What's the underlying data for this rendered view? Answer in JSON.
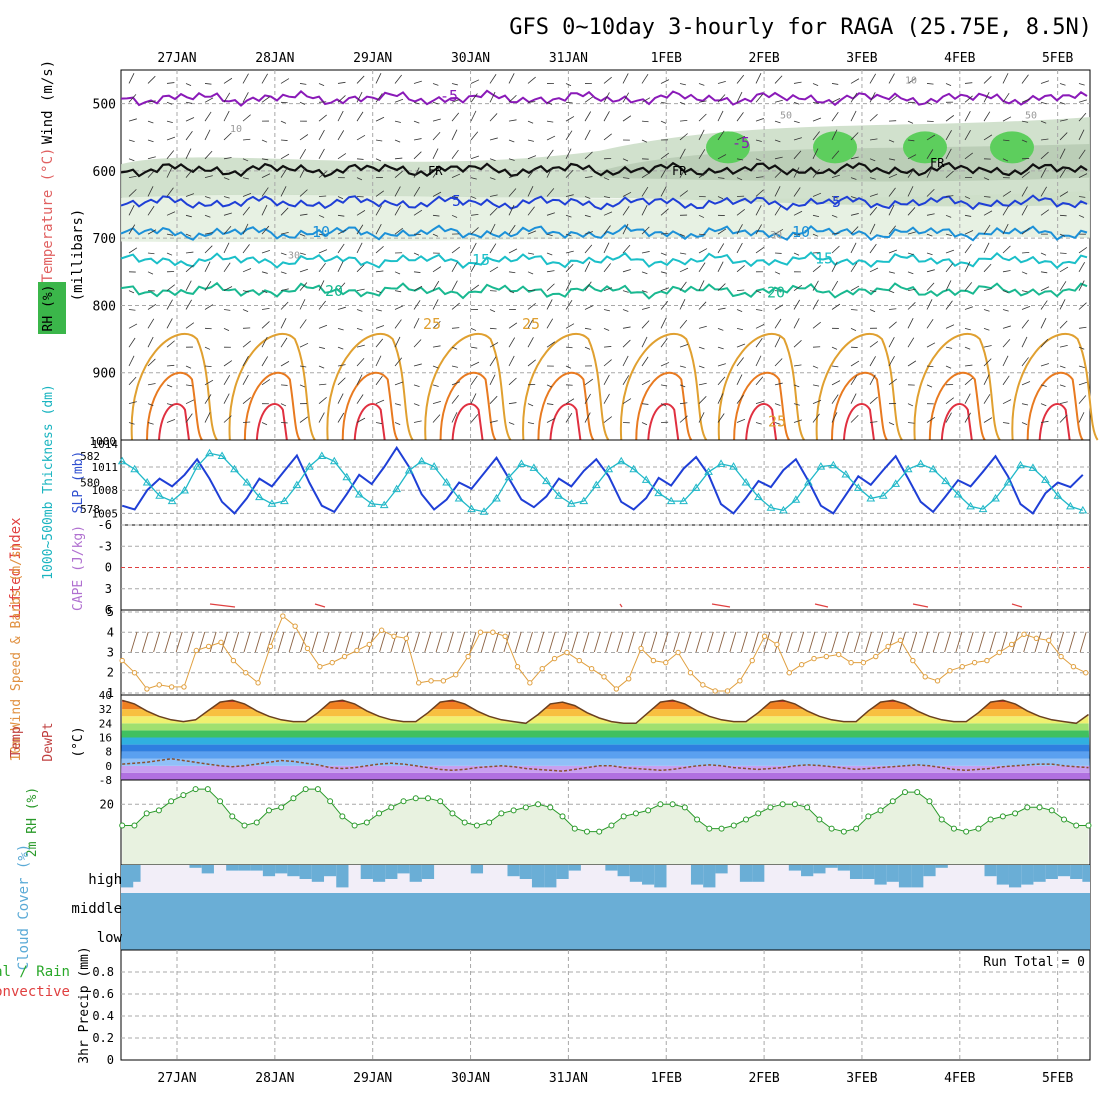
{
  "title": "GFS 0~10day 3-hourly for RAGA (25.75E, 8.5N)",
  "date_labels": [
    "27JAN",
    "28JAN",
    "29JAN",
    "30JAN",
    "31JAN",
    "1FEB",
    "2FEB",
    "3FEB",
    "4FEB",
    "5FEB"
  ],
  "colors": {
    "grid": "#a8a8a8",
    "rh_fill": "#e4f0e0",
    "rh_fill2": "#c9dcc4",
    "rh_fill3": "#b5c9b1",
    "rh_green": "#5dce5d",
    "purple": "#8a1ab8",
    "blue_dark": "#1f3fd6",
    "blue_mid": "#1c90d8",
    "cyan": "#1bbfc8",
    "teal": "#19b890",
    "yellow": "#e0a030",
    "orange": "#e87a20",
    "red": "#e03040",
    "magenta": "#d0107a",
    "slp_line": "#1f3fd6",
    "thick_line": "#20b8c8",
    "wind_line": "#e0a040",
    "rh2m_line": "#2a9a2a",
    "rh2m_fill": "#e8f2e0",
    "cloud_fill": "#6aaed6",
    "cloud_bg": "#f2eef8",
    "li_color": "#e04040",
    "cape_color": "#b070d0"
  },
  "chart_data": [
    {
      "type": "contour",
      "panel": "upper-air",
      "ylabel_parts": [
        "Wind (m/s)",
        "Temperature (°C)",
        "RH (%)",
        "(millibars)"
      ],
      "yticks": [
        500,
        600,
        700,
        800,
        900,
        1000
      ],
      "ylim": [
        1000,
        450
      ],
      "freezing_label": "FR",
      "temperature_labels": [
        "-5",
        "5",
        "10",
        "15",
        "20",
        "25"
      ],
      "rh_labels": [
        "10",
        "30",
        "50"
      ],
      "isotherms": [
        {
          "label": "-5",
          "pressure": 492,
          "color_key": "purple"
        },
        {
          "label": "0",
          "pressure": 598,
          "color_key": "black"
        },
        {
          "label": "5",
          "pressure": 647,
          "color_key": "blue_dark"
        },
        {
          "label": "10",
          "pressure": 692,
          "color_key": "blue_mid"
        },
        {
          "label": "15",
          "pressure": 733,
          "color_key": "cyan"
        },
        {
          "label": "20",
          "pressure": 778,
          "color_key": "teal"
        }
      ]
    },
    {
      "type": "line",
      "panel": "slp-thickness",
      "ylabel_left": "1000~500mb Thickness (dm)",
      "ylabel_right": "SLP (mb)",
      "left_ticks": [
        "578",
        "580",
        "582"
      ],
      "right_ticks": [
        "1005",
        "1008",
        "1011",
        "1014"
      ],
      "slp_values": [
        1006.0,
        1005.5,
        1008.0,
        1009.5,
        1008.5,
        1010.0,
        1012.0,
        1009.5,
        1006.5,
        1005.0,
        1007.0,
        1009.5,
        1008.5,
        1010.5,
        1012.5,
        1009.0,
        1006.0,
        1005.2,
        1007.5,
        1010.0,
        1008.8,
        1011.0,
        1013.5,
        1011.0,
        1007.5,
        1005.5,
        1006.8,
        1009.0,
        1008.2,
        1010.2,
        1012.2,
        1009.5,
        1006.8,
        1005.8,
        1007.2,
        1009.5,
        1008.5,
        1010.5,
        1012.0,
        1009.8,
        1006.5,
        1005.5,
        1007.0,
        1009.6,
        1008.6,
        1010.8,
        1012.3,
        1010.0,
        1006.2,
        1005.0,
        1007.0,
        1009.2,
        1008.4,
        1010.6,
        1012.0,
        1009.2,
        1006.0,
        1005.0,
        1007.4,
        1009.8,
        1008.7,
        1010.6,
        1012.4,
        1009.5,
        1006.5,
        1005.2,
        1007.2,
        1009.3,
        1008.5,
        1010.4,
        1012.4,
        1009.8,
        1006.2,
        1005.0,
        1007.6,
        1009.0,
        1008.4,
        1010.0,
        1011.8,
        1009.0,
        1006.2,
        1005.0,
        1007.5,
        1009.8,
        1008.7,
        1011.0
      ],
      "thickness_values": [
        581.6,
        581.0,
        580.0,
        579.0,
        578.6,
        579.4,
        581.2,
        582.2,
        582.0,
        581.0,
        580.0,
        578.9,
        578.4,
        578.6,
        579.8,
        581.2,
        582.0,
        581.6,
        580.4,
        579.1,
        578.4,
        578.3,
        579.5,
        580.9,
        581.6,
        581.2,
        580.0,
        578.8,
        578.0,
        577.8,
        578.8,
        580.4,
        581.4,
        581.1,
        580.1,
        579.0,
        578.4,
        578.6,
        579.8,
        581.0,
        581.6,
        581.0,
        580.2,
        579.2,
        578.6,
        578.6,
        579.6,
        580.8,
        581.4,
        581.2,
        580.0,
        578.9,
        578.1,
        577.9,
        578.7,
        580.0,
        581.2,
        581.3,
        580.6,
        579.6,
        578.8,
        579.0,
        579.9,
        581.0,
        581.4,
        581.0,
        580.1,
        579.1,
        578.2,
        578.0,
        578.8,
        580.0,
        581.3,
        581.1,
        580.2,
        579.0,
        578.2,
        577.9,
        578.8,
        580.2,
        581.2,
        581.0,
        579.8,
        578.8,
        577.8,
        579.0
      ]
    },
    {
      "type": "line",
      "panel": "li-cape",
      "ylabel_left": "Lifted Index",
      "ylabel_right": "CAPE (J/kg)",
      "yticks": [
        "-6",
        "-3",
        "0",
        "3",
        "6"
      ],
      "ylim": [
        -6,
        6
      ]
    },
    {
      "type": "line",
      "panel": "wind10m",
      "ylabel": "10m Wind Speed & Barbs (m/s)",
      "yticks": [
        "1",
        "2",
        "3",
        "4",
        "5"
      ],
      "ylim": [
        0.9,
        5.1
      ],
      "values": [
        2.6,
        2.0,
        1.2,
        1.4,
        1.3,
        1.3,
        3.1,
        3.3,
        3.5,
        2.6,
        2.0,
        1.5,
        3.3,
        4.8,
        4.3,
        3.2,
        2.3,
        2.5,
        2.8,
        3.1,
        3.4,
        4.1,
        3.8,
        3.7,
        1.5,
        1.6,
        1.6,
        1.9,
        2.8,
        4.0,
        4.0,
        3.8,
        2.3,
        1.5,
        2.2,
        2.7,
        3.0,
        2.6,
        2.2,
        1.8,
        1.2,
        1.7,
        3.2,
        2.6,
        2.5,
        3.0,
        2.0,
        1.4,
        1.1,
        1.1,
        1.6,
        2.6,
        3.8,
        3.4,
        2.0,
        2.4,
        2.7,
        2.8,
        2.9,
        2.5,
        2.5,
        2.8,
        3.3,
        3.6,
        2.6,
        1.8,
        1.6,
        2.1,
        2.3,
        2.5,
        2.6,
        3.0,
        3.4,
        3.9,
        3.7,
        3.6,
        2.8,
        2.3,
        2.0,
        1.9,
        2.3,
        2.5,
        2.4,
        3.3,
        4.1
      ]
    },
    {
      "type": "line",
      "panel": "temp2m",
      "ylabel": "2m Temp 2m DewPt (6hr Min/Max) (°C)",
      "yticks": [
        "-8",
        "0",
        "8",
        "16",
        "24",
        "32",
        "40"
      ],
      "ylim": [
        -8,
        40
      ],
      "temp_values": [
        37,
        35,
        31,
        28,
        26,
        25,
        26,
        31,
        36,
        37,
        35,
        31,
        28,
        26,
        25,
        25,
        30,
        36,
        37,
        35,
        31,
        28,
        26,
        25,
        25,
        30,
        36,
        37,
        35,
        31,
        28,
        26,
        25,
        24,
        29,
        35,
        36,
        34,
        30,
        27,
        25,
        24,
        24,
        30,
        36,
        37,
        35,
        31,
        28,
        26,
        25,
        25,
        30,
        36,
        37,
        35,
        31,
        28,
        26,
        25,
        25,
        31,
        36,
        37,
        35,
        31,
        28,
        26,
        25,
        25,
        30,
        36,
        37,
        35,
        31,
        28,
        26,
        25,
        24,
        29,
        35,
        36,
        34,
        29,
        26,
        24,
        22,
        24
      ],
      "dewpt_values": [
        1,
        1.5,
        2,
        3,
        4,
        3,
        2,
        1,
        0,
        -0.5,
        0,
        1,
        2,
        3,
        2.5,
        1.5,
        0.5,
        -1,
        -1.5,
        -1,
        0,
        1,
        1.5,
        1,
        0,
        -1,
        -2,
        -2.5,
        -2,
        -1,
        -0.5,
        0,
        -0.5,
        -1.5,
        -2,
        -2.5,
        -3,
        -2,
        -1,
        0,
        0,
        -1,
        -1.5,
        -2,
        -2.5,
        -2,
        -1,
        0,
        0.5,
        0,
        -1,
        -1.5,
        -2,
        -1.5,
        -1,
        0,
        0.5,
        0.2,
        -0.5,
        -1.2,
        -2,
        -1.5,
        -1,
        -0.5,
        0,
        0.5,
        0,
        -1,
        -2,
        -2.5,
        -2,
        -1.5,
        -0.5,
        0,
        0.5,
        1,
        1,
        0,
        -0.5,
        -1,
        -0.5,
        0,
        0.5,
        0.5,
        0,
        -0.5,
        -1,
        -1
      ]
    },
    {
      "type": "area",
      "panel": "rh2m",
      "ylabel": "2m RH (%)",
      "yticks": [
        "20"
      ],
      "ylim": [
        0,
        28
      ],
      "values": [
        13,
        13,
        17,
        18,
        21,
        23,
        25,
        25,
        21,
        16,
        13,
        14,
        18,
        19,
        22,
        25,
        25,
        21,
        16,
        13,
        14,
        17,
        19,
        21,
        22,
        22,
        21,
        17,
        14,
        13,
        14,
        17,
        18,
        19,
        20,
        19,
        16,
        12,
        11,
        11,
        13,
        16,
        17,
        18,
        20,
        20,
        19,
        15,
        12,
        12,
        13,
        15,
        17,
        19,
        20,
        20,
        19,
        15,
        12,
        11,
        12,
        16,
        18,
        21,
        24,
        24,
        21,
        15,
        12,
        11,
        12,
        15,
        16,
        17,
        19,
        19,
        18,
        15,
        13,
        13,
        14,
        15,
        18,
        20,
        21,
        21,
        18
      ]
    },
    {
      "type": "bar",
      "panel": "cloud",
      "ylabel": "Cloud Cover (%)",
      "levels": [
        "high",
        "middle",
        "low"
      ],
      "high_values": [
        80,
        60,
        0,
        0,
        0,
        0,
        10,
        30,
        0,
        20,
        20,
        20,
        40,
        30,
        40,
        50,
        60,
        40,
        80,
        0,
        50,
        60,
        50,
        30,
        60,
        50,
        0,
        0,
        0,
        30,
        0,
        0,
        40,
        50,
        80,
        80,
        50,
        20,
        0,
        0,
        20,
        40,
        60,
        70,
        80,
        0,
        0,
        70,
        80,
        30,
        0,
        60,
        60,
        0,
        0,
        20,
        40,
        30,
        10,
        20,
        50,
        50,
        70,
        60,
        80,
        80,
        40,
        10,
        0,
        0,
        0,
        40,
        70,
        80,
        70,
        60,
        50,
        40,
        50,
        60,
        70,
        60,
        70,
        60,
        70,
        60,
        70,
        80
      ],
      "middle_values": [
        100,
        100,
        100,
        100,
        100,
        100,
        100,
        100,
        100,
        100,
        100,
        100,
        100,
        100,
        100,
        100,
        100,
        100,
        100,
        100,
        100,
        100,
        100,
        100,
        100,
        100,
        100,
        100,
        100,
        100,
        100,
        100,
        100,
        100,
        100,
        100,
        100,
        100,
        100,
        100,
        100,
        100,
        100,
        100,
        100,
        100,
        100,
        100,
        100,
        100,
        100,
        100,
        100,
        100,
        100,
        100,
        100,
        100,
        100,
        100,
        100,
        100,
        100,
        100,
        100,
        100,
        100,
        100,
        100,
        100,
        100,
        100,
        100,
        100,
        100,
        100,
        100,
        100,
        100,
        100,
        100,
        100,
        100,
        100,
        100,
        100,
        100,
        100
      ]
    },
    {
      "type": "bar",
      "panel": "precip",
      "ylabel": "3hr Precip (mm)",
      "legend_left": "Total / Rain",
      "legend_left2": "Convective",
      "run_total": "Run Total = 0",
      "yticks": [
        "0",
        "0.2",
        "0.4",
        "0.6",
        "0.8"
      ],
      "ylim": [
        0,
        1
      ]
    }
  ]
}
